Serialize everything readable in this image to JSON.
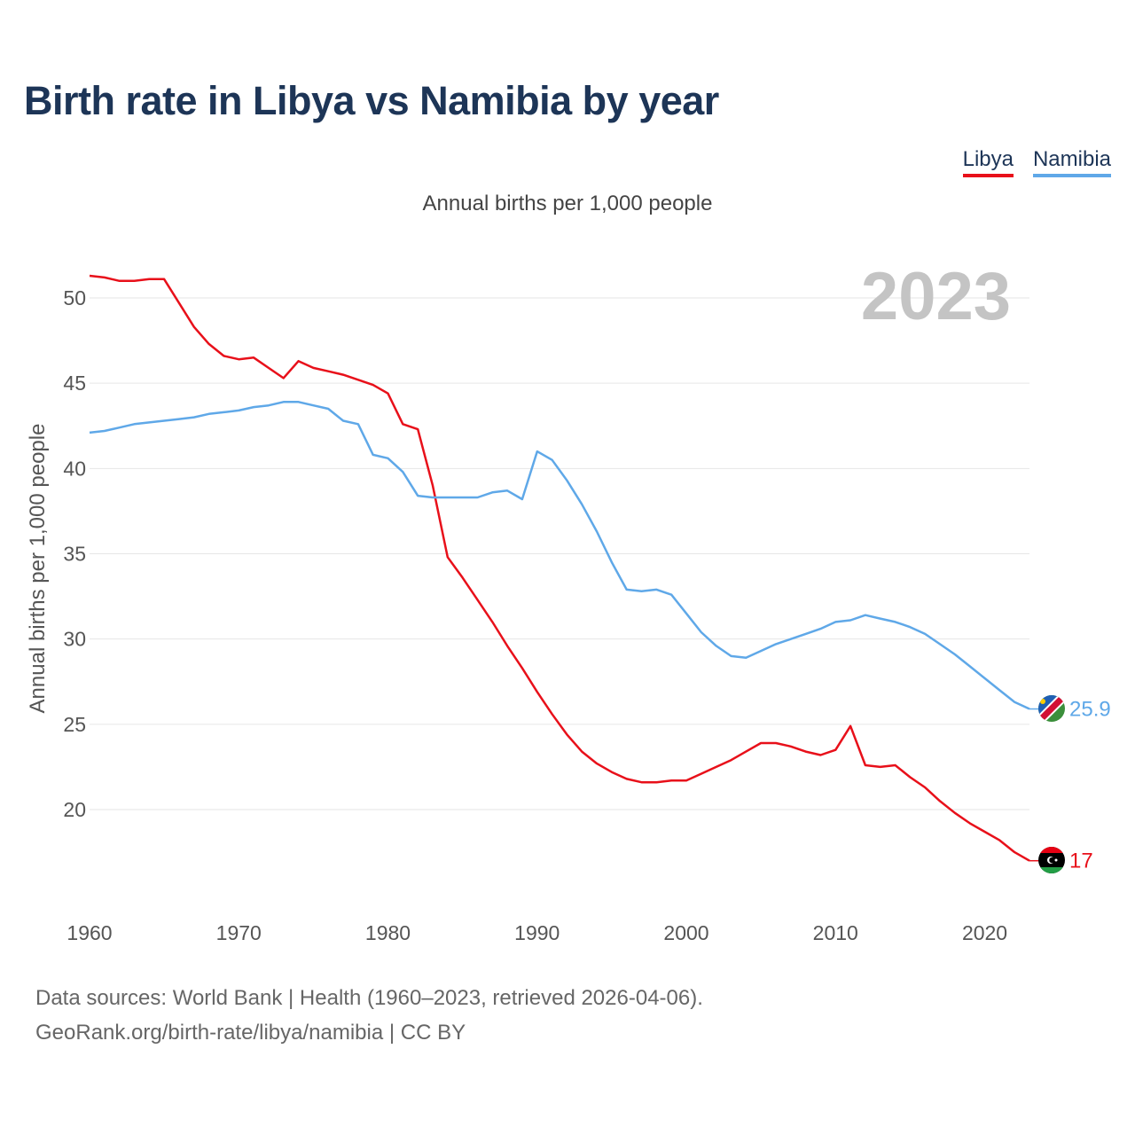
{
  "title": "Birth rate in Libya vs Namibia by year",
  "subtitle": "Annual births per 1,000 people",
  "legend": [
    {
      "name": "Libya",
      "color": "#e8101a"
    },
    {
      "name": "Namibia",
      "color": "#5fa8e8"
    }
  ],
  "year_label": "2023",
  "footer": {
    "line1": "Data sources: World Bank | Health (1960–2023, retrieved 2026-04-06).",
    "line2": "GeoRank.org/birth-rate/libya/namibia | CC BY"
  },
  "chart_data": {
    "type": "line",
    "title": "Birth rate in Libya vs Namibia by year",
    "xlabel": "",
    "ylabel": "Annual births per 1,000 people",
    "xlim": [
      1960,
      2023
    ],
    "ylim": [
      15,
      52
    ],
    "x_ticks": [
      1960,
      1970,
      1980,
      1990,
      2000,
      2010,
      2020
    ],
    "y_ticks": [
      20,
      25,
      30,
      35,
      40,
      45,
      50
    ],
    "grid": true,
    "legend_position": "top-right",
    "x": [
      1960,
      1961,
      1962,
      1963,
      1964,
      1965,
      1966,
      1967,
      1968,
      1969,
      1970,
      1971,
      1972,
      1973,
      1974,
      1975,
      1976,
      1977,
      1978,
      1979,
      1980,
      1981,
      1982,
      1983,
      1984,
      1985,
      1986,
      1987,
      1988,
      1989,
      1990,
      1991,
      1992,
      1993,
      1994,
      1995,
      1996,
      1997,
      1998,
      1999,
      2000,
      2001,
      2002,
      2003,
      2004,
      2005,
      2006,
      2007,
      2008,
      2009,
      2010,
      2011,
      2012,
      2013,
      2014,
      2015,
      2016,
      2017,
      2018,
      2019,
      2020,
      2021,
      2022,
      2023
    ],
    "series": [
      {
        "name": "Libya",
        "color": "#e8101a",
        "end_label": "17",
        "values": [
          51.3,
          51.2,
          51.0,
          51.0,
          51.1,
          51.1,
          49.7,
          48.3,
          47.3,
          46.6,
          46.4,
          46.5,
          45.9,
          45.3,
          46.3,
          45.9,
          45.7,
          45.5,
          45.2,
          44.9,
          44.4,
          42.6,
          42.3,
          39.0,
          34.8,
          33.6,
          32.3,
          31.0,
          29.6,
          28.3,
          26.9,
          25.6,
          24.4,
          23.4,
          22.7,
          22.2,
          21.8,
          21.6,
          21.6,
          21.7,
          21.7,
          22.1,
          22.5,
          22.9,
          23.4,
          23.9,
          23.9,
          23.7,
          23.4,
          23.2,
          23.5,
          24.9,
          22.6,
          22.5,
          22.6,
          21.9,
          21.3,
          20.5,
          19.8,
          19.2,
          18.7,
          18.2,
          17.5,
          17.0
        ]
      },
      {
        "name": "Namibia",
        "color": "#5fa8e8",
        "end_label": "25.9",
        "values": [
          42.1,
          42.2,
          42.4,
          42.6,
          42.7,
          42.8,
          42.9,
          43.0,
          43.2,
          43.3,
          43.4,
          43.6,
          43.7,
          43.9,
          43.9,
          43.7,
          43.5,
          42.8,
          42.6,
          40.8,
          40.6,
          39.8,
          38.4,
          38.3,
          38.3,
          38.3,
          38.3,
          38.6,
          38.7,
          38.2,
          41.0,
          40.5,
          39.3,
          37.9,
          36.3,
          34.5,
          32.9,
          32.8,
          32.9,
          32.6,
          31.5,
          30.4,
          29.6,
          29.0,
          28.9,
          29.3,
          29.7,
          30.0,
          30.3,
          30.6,
          31.0,
          31.1,
          31.4,
          31.2,
          31.0,
          30.7,
          30.3,
          29.7,
          29.1,
          28.4,
          27.7,
          27.0,
          26.3,
          25.9
        ]
      }
    ]
  }
}
